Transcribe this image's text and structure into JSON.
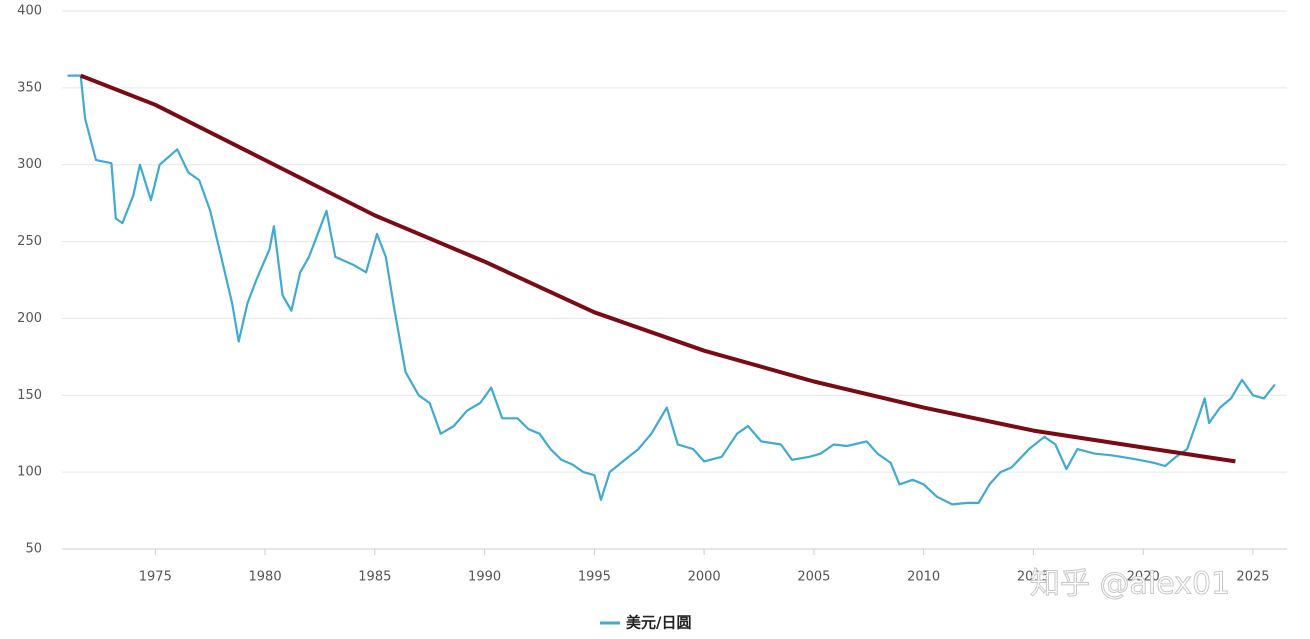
{
  "chart_data": {
    "type": "line",
    "xlim": [
      1970.75,
      2026.55
    ],
    "xticks": [
      1975,
      1980,
      1985,
      1990,
      1995,
      2000,
      2005,
      2010,
      2015,
      2020,
      2025
    ],
    "ylim": [
      50,
      400
    ],
    "yticks": [
      50,
      100,
      150,
      200,
      250,
      300,
      350,
      400
    ],
    "grid": true,
    "legend": "bottom",
    "watermark": "知乎 @alex01",
    "series": [
      {
        "name": "美元/日圆",
        "color": "#41aad0",
        "x": [
          1971.0,
          1971.6,
          1971.8,
          1972.3,
          1973.0,
          1973.2,
          1973.5,
          1974.0,
          1974.3,
          1974.8,
          1975.2,
          1976.0,
          1976.5,
          1977.0,
          1977.5,
          1978.0,
          1978.5,
          1978.8,
          1979.2,
          1979.6,
          1980.2,
          1980.4,
          1980.8,
          1981.2,
          1981.6,
          1982.0,
          1982.8,
          1983.2,
          1984.0,
          1984.6,
          1985.1,
          1985.5,
          1985.9,
          1986.4,
          1987.0,
          1987.5,
          1988.0,
          1988.6,
          1989.2,
          1989.8,
          1990.3,
          1990.8,
          1991.5,
          1992.0,
          1992.5,
          1993.0,
          1993.5,
          1994.0,
          1994.5,
          1995.0,
          1995.3,
          1995.7,
          1996.3,
          1997.0,
          1997.6,
          1998.3,
          1998.8,
          1999.5,
          2000.0,
          2000.8,
          2001.5,
          2002.0,
          2002.6,
          2003.5,
          2004.0,
          2004.8,
          2005.3,
          2005.9,
          2006.5,
          2007.4,
          2007.9,
          2008.5,
          2008.9,
          2009.5,
          2010.0,
          2010.6,
          2011.3,
          2012.0,
          2012.5,
          2013.0,
          2013.5,
          2014.0,
          2014.8,
          2015.5,
          2016.0,
          2016.5,
          2017.0,
          2017.8,
          2018.5,
          2019.0,
          2019.8,
          2020.5,
          2021.0,
          2021.5,
          2022.0,
          2022.5,
          2022.8,
          2023.0,
          2023.5,
          2024.0,
          2024.5,
          2025.0,
          2025.5,
          2026.0
        ],
        "values": [
          358,
          358,
          330,
          303,
          301,
          265,
          262,
          280,
          300,
          277,
          300,
          310,
          295,
          290,
          270,
          240,
          210,
          185,
          210,
          225,
          245,
          260,
          215,
          205,
          230,
          240,
          270,
          240,
          235,
          230,
          255,
          240,
          205,
          165,
          150,
          145,
          125,
          130,
          140,
          145,
          155,
          135,
          135,
          128,
          125,
          115,
          108,
          105,
          100,
          98,
          82,
          100,
          107,
          115,
          125,
          142,
          118,
          115,
          107,
          110,
          125,
          130,
          120,
          118,
          108,
          110,
          112,
          118,
          117,
          120,
          112,
          106,
          92,
          95,
          92,
          84,
          79,
          80,
          80,
          92,
          100,
          103,
          115,
          123,
          118,
          102,
          115,
          112,
          111,
          110,
          108,
          106,
          104,
          110,
          115,
          135,
          148,
          132,
          142,
          148,
          160,
          150,
          148,
          157
        ]
      },
      {
        "color": "#7a0a14",
        "x": [
          1971.6,
          1975,
          1980,
          1985,
          1990,
          1995,
          2000,
          2005,
          2010,
          2015,
          2020,
          2024.2
        ],
        "values": [
          358,
          339,
          303,
          267,
          237,
          204,
          179,
          159,
          142,
          127,
          116,
          107
        ]
      }
    ]
  }
}
